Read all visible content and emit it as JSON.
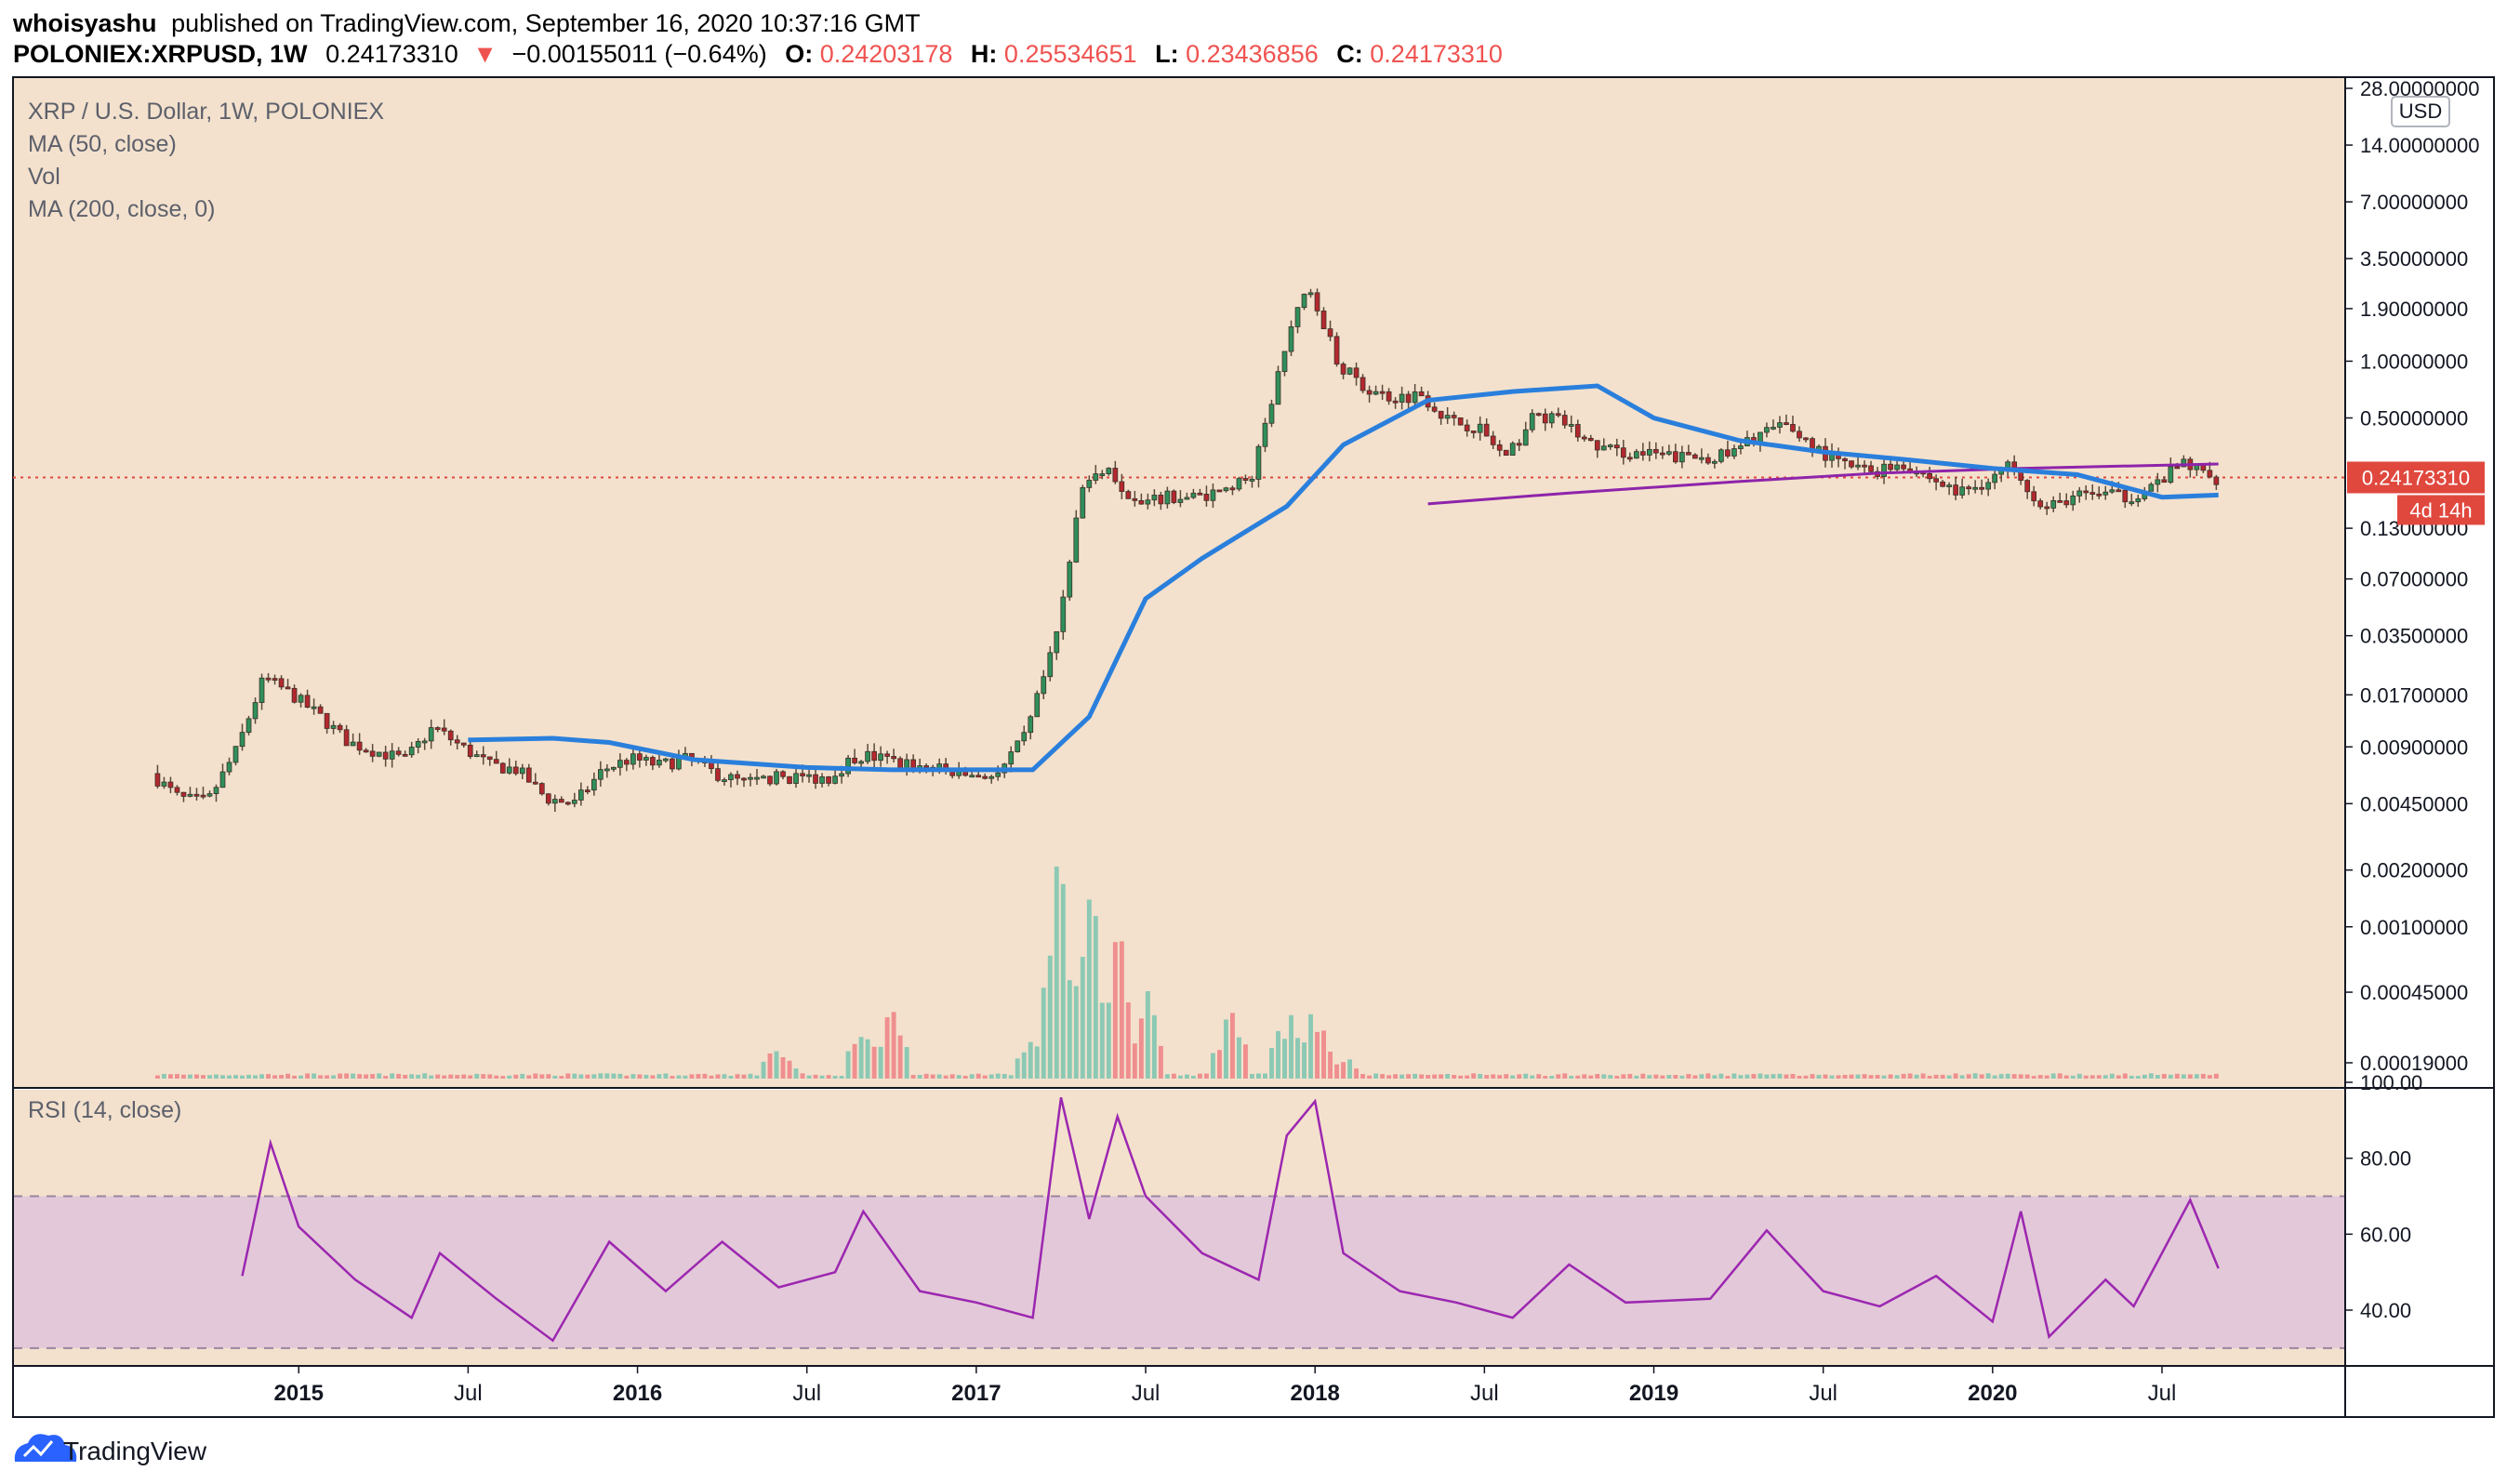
{
  "header": {
    "author": "whoisyashu",
    "published_text": "published on TradingView.com, September 16, 2020 10:37:16 GMT",
    "symbol": "POLONIEX:XRPUSD, 1W",
    "last": "0.24173310",
    "change": "−0.00155011 (−0.64%)",
    "open_label": "O:",
    "open": "0.24203178",
    "high_label": "H:",
    "high": "0.25534651",
    "low_label": "L:",
    "low": "0.23436856",
    "close_label": "C:",
    "close": "0.24173310"
  },
  "legend": {
    "title": "XRP / U.S. Dollar, 1W, POLONIEX",
    "ma50": "MA (50, close)",
    "vol": "Vol",
    "ma200": "MA (200, close, 0)",
    "rsi": "RSI (14, close)"
  },
  "price_axis": {
    "currency": "USD",
    "last_price_label": "0.24173310",
    "countdown_label": "4d 14h"
  },
  "footer": {
    "brand": "TradingView"
  },
  "colors": {
    "background": "#f3e1cd",
    "up": "#26a69a",
    "down": "#ef5350",
    "ma50": "#2a7fdc",
    "ma200": "#8e24aa",
    "rsi_line": "#9c27b0",
    "rsi_band": "#e3c8d9",
    "last_price": "#e0483e"
  },
  "chart_data": [
    {
      "type": "candlestick",
      "interval": "1W",
      "scale": "log",
      "y_ticks": [
        "28.00000000",
        "14.00000000",
        "7.00000000",
        "3.50000000",
        "1.90000000",
        "1.00000000",
        "0.50000000",
        "0.24173310",
        "0.13000000",
        "0.07000000",
        "0.03500000",
        "0.01700000",
        "0.00900000",
        "0.00450000",
        "0.00200000",
        "0.00100000",
        "0.00045000",
        "0.00019000"
      ],
      "x_ticks": [
        "2015",
        "Jul",
        "2016",
        "Jul",
        "2017",
        "Jul",
        "2018",
        "Jul",
        "2019",
        "Jul",
        "2020",
        "Jul"
      ],
      "price_path": [
        [
          "2014-08",
          0.0065
        ],
        [
          "2014-09",
          0.0048
        ],
        [
          "2014-10",
          0.0046
        ],
        [
          "2014-11",
          0.0085
        ],
        [
          "2014-12",
          0.021
        ],
        [
          "2015-01",
          0.017
        ],
        [
          "2015-02",
          0.013
        ],
        [
          "2015-03",
          0.0095
        ],
        [
          "2015-04",
          0.0085
        ],
        [
          "2015-05",
          0.0077
        ],
        [
          "2015-06",
          0.0115
        ],
        [
          "2015-07",
          0.009
        ],
        [
          "2015-08",
          0.0072
        ],
        [
          "2015-09",
          0.0068
        ],
        [
          "2015-10",
          0.0048
        ],
        [
          "2015-11",
          0.0045
        ],
        [
          "2015-12",
          0.0068
        ],
        [
          "2016-01",
          0.0078
        ],
        [
          "2016-02",
          0.0072
        ],
        [
          "2016-03",
          0.0078
        ],
        [
          "2016-04",
          0.0065
        ],
        [
          "2016-05",
          0.0058
        ],
        [
          "2016-06",
          0.0062
        ],
        [
          "2016-07",
          0.0062
        ],
        [
          "2016-08",
          0.0062
        ],
        [
          "2016-09",
          0.0082
        ],
        [
          "2016-10",
          0.0078
        ],
        [
          "2016-11",
          0.0072
        ],
        [
          "2016-12",
          0.0068
        ],
        [
          "2017-01",
          0.0064
        ],
        [
          "2017-02",
          0.0063
        ],
        [
          "2017-03",
          0.0105
        ],
        [
          "2017-04",
          0.032
        ],
        [
          "2017-05",
          0.22
        ],
        [
          "2017-06",
          0.26
        ],
        [
          "2017-07",
          0.17
        ],
        [
          "2017-08",
          0.19
        ],
        [
          "2017-09",
          0.19
        ],
        [
          "2017-10",
          0.21
        ],
        [
          "2017-11",
          0.24
        ],
        [
          "2017-12",
          0.95
        ],
        [
          "2018-01",
          2.7
        ],
        [
          "2018-02",
          1.0
        ],
        [
          "2018-03",
          0.72
        ],
        [
          "2018-04",
          0.64
        ],
        [
          "2018-05",
          0.67
        ],
        [
          "2018-06",
          0.48
        ],
        [
          "2018-07",
          0.45
        ],
        [
          "2018-08",
          0.3
        ],
        [
          "2018-09",
          0.52
        ],
        [
          "2018-10",
          0.48
        ],
        [
          "2018-11",
          0.36
        ],
        [
          "2018-12",
          0.33
        ],
        [
          "2019-01",
          0.32
        ],
        [
          "2019-02",
          0.31
        ],
        [
          "2019-03",
          0.31
        ],
        [
          "2019-04",
          0.32
        ],
        [
          "2019-05",
          0.42
        ],
        [
          "2019-06",
          0.45
        ],
        [
          "2019-07",
          0.34
        ],
        [
          "2019-08",
          0.28
        ],
        [
          "2019-09",
          0.26
        ],
        [
          "2019-10",
          0.29
        ],
        [
          "2019-11",
          0.24
        ],
        [
          "2019-12",
          0.2
        ],
        [
          "2020-01",
          0.23
        ],
        [
          "2020-02",
          0.29
        ],
        [
          "2020-03",
          0.16
        ],
        [
          "2020-04",
          0.19
        ],
        [
          "2020-05",
          0.2
        ],
        [
          "2020-06",
          0.19
        ],
        [
          "2020-07",
          0.22
        ],
        [
          "2020-08",
          0.29
        ],
        [
          "2020-09",
          0.24
        ]
      ],
      "ma50_path": [
        [
          "2015-07",
          0.0098
        ],
        [
          "2015-10",
          0.01
        ],
        [
          "2015-12",
          0.0095
        ],
        [
          "2016-03",
          0.0077
        ],
        [
          "2016-07",
          0.007
        ],
        [
          "2016-10",
          0.0068
        ],
        [
          "2017-03",
          0.0068
        ],
        [
          "2017-05",
          0.013
        ],
        [
          "2017-07",
          0.055
        ],
        [
          "2017-09",
          0.09
        ],
        [
          "2017-12",
          0.17
        ],
        [
          "2018-02",
          0.36
        ],
        [
          "2018-05",
          0.62
        ],
        [
          "2018-08",
          0.69
        ],
        [
          "2018-11",
          0.74
        ],
        [
          "2019-01",
          0.5
        ],
        [
          "2019-04",
          0.38
        ],
        [
          "2019-07",
          0.33
        ],
        [
          "2019-10",
          0.3
        ],
        [
          "2020-01",
          0.27
        ],
        [
          "2020-04",
          0.25
        ],
        [
          "2020-07",
          0.19
        ],
        [
          "2020-09",
          0.195
        ]
      ],
      "ma200_path": [
        [
          "2018-05",
          0.175
        ],
        [
          "2018-10",
          0.2
        ],
        [
          "2019-04",
          0.23
        ],
        [
          "2019-09",
          0.255
        ],
        [
          "2020-02",
          0.27
        ],
        [
          "2020-09",
          0.285
        ]
      ],
      "volume_spikes": [
        [
          "2016-06",
          0.08
        ],
        [
          "2016-09",
          0.14
        ],
        [
          "2016-10",
          0.16
        ],
        [
          "2017-03",
          0.1
        ],
        [
          "2017-04",
          0.52
        ],
        [
          "2017-05",
          0.44
        ],
        [
          "2017-06",
          0.34
        ],
        [
          "2017-07",
          0.2
        ],
        [
          "2017-10",
          0.17
        ],
        [
          "2017-12",
          0.16
        ],
        [
          "2018-01",
          0.17
        ],
        [
          "2018-02",
          0.06
        ]
      ]
    },
    {
      "type": "line",
      "name": "RSI (14, close)",
      "y_ticks": [
        "100.00",
        "80.00",
        "60.00",
        "40.00"
      ],
      "band": [
        30,
        70
      ],
      "points": [
        [
          "2014-11",
          49
        ],
        [
          "2014-12",
          84
        ],
        [
          "2015-01",
          62
        ],
        [
          "2015-03",
          48
        ],
        [
          "2015-05",
          38
        ],
        [
          "2015-06",
          55
        ],
        [
          "2015-08",
          43
        ],
        [
          "2015-10",
          32
        ],
        [
          "2015-12",
          58
        ],
        [
          "2016-02",
          45
        ],
        [
          "2016-04",
          58
        ],
        [
          "2016-06",
          46
        ],
        [
          "2016-08",
          50
        ],
        [
          "2016-09",
          66
        ],
        [
          "2016-11",
          45
        ],
        [
          "2017-01",
          42
        ],
        [
          "2017-03",
          38
        ],
        [
          "2017-04",
          96
        ],
        [
          "2017-05",
          64
        ],
        [
          "2017-06",
          91
        ],
        [
          "2017-07",
          70
        ],
        [
          "2017-09",
          55
        ],
        [
          "2017-11",
          48
        ],
        [
          "2017-12",
          86
        ],
        [
          "2018-01",
          95
        ],
        [
          "2018-02",
          55
        ],
        [
          "2018-04",
          45
        ],
        [
          "2018-06",
          42
        ],
        [
          "2018-08",
          38
        ],
        [
          "2018-10",
          52
        ],
        [
          "2018-12",
          42
        ],
        [
          "2019-03",
          43
        ],
        [
          "2019-05",
          61
        ],
        [
          "2019-07",
          45
        ],
        [
          "2019-09",
          41
        ],
        [
          "2019-11",
          49
        ],
        [
          "2020-01",
          37
        ],
        [
          "2020-02",
          66
        ],
        [
          "2020-03",
          33
        ],
        [
          "2020-05",
          48
        ],
        [
          "2020-06",
          41
        ],
        [
          "2020-08",
          69
        ],
        [
          "2020-09",
          51
        ]
      ]
    }
  ]
}
